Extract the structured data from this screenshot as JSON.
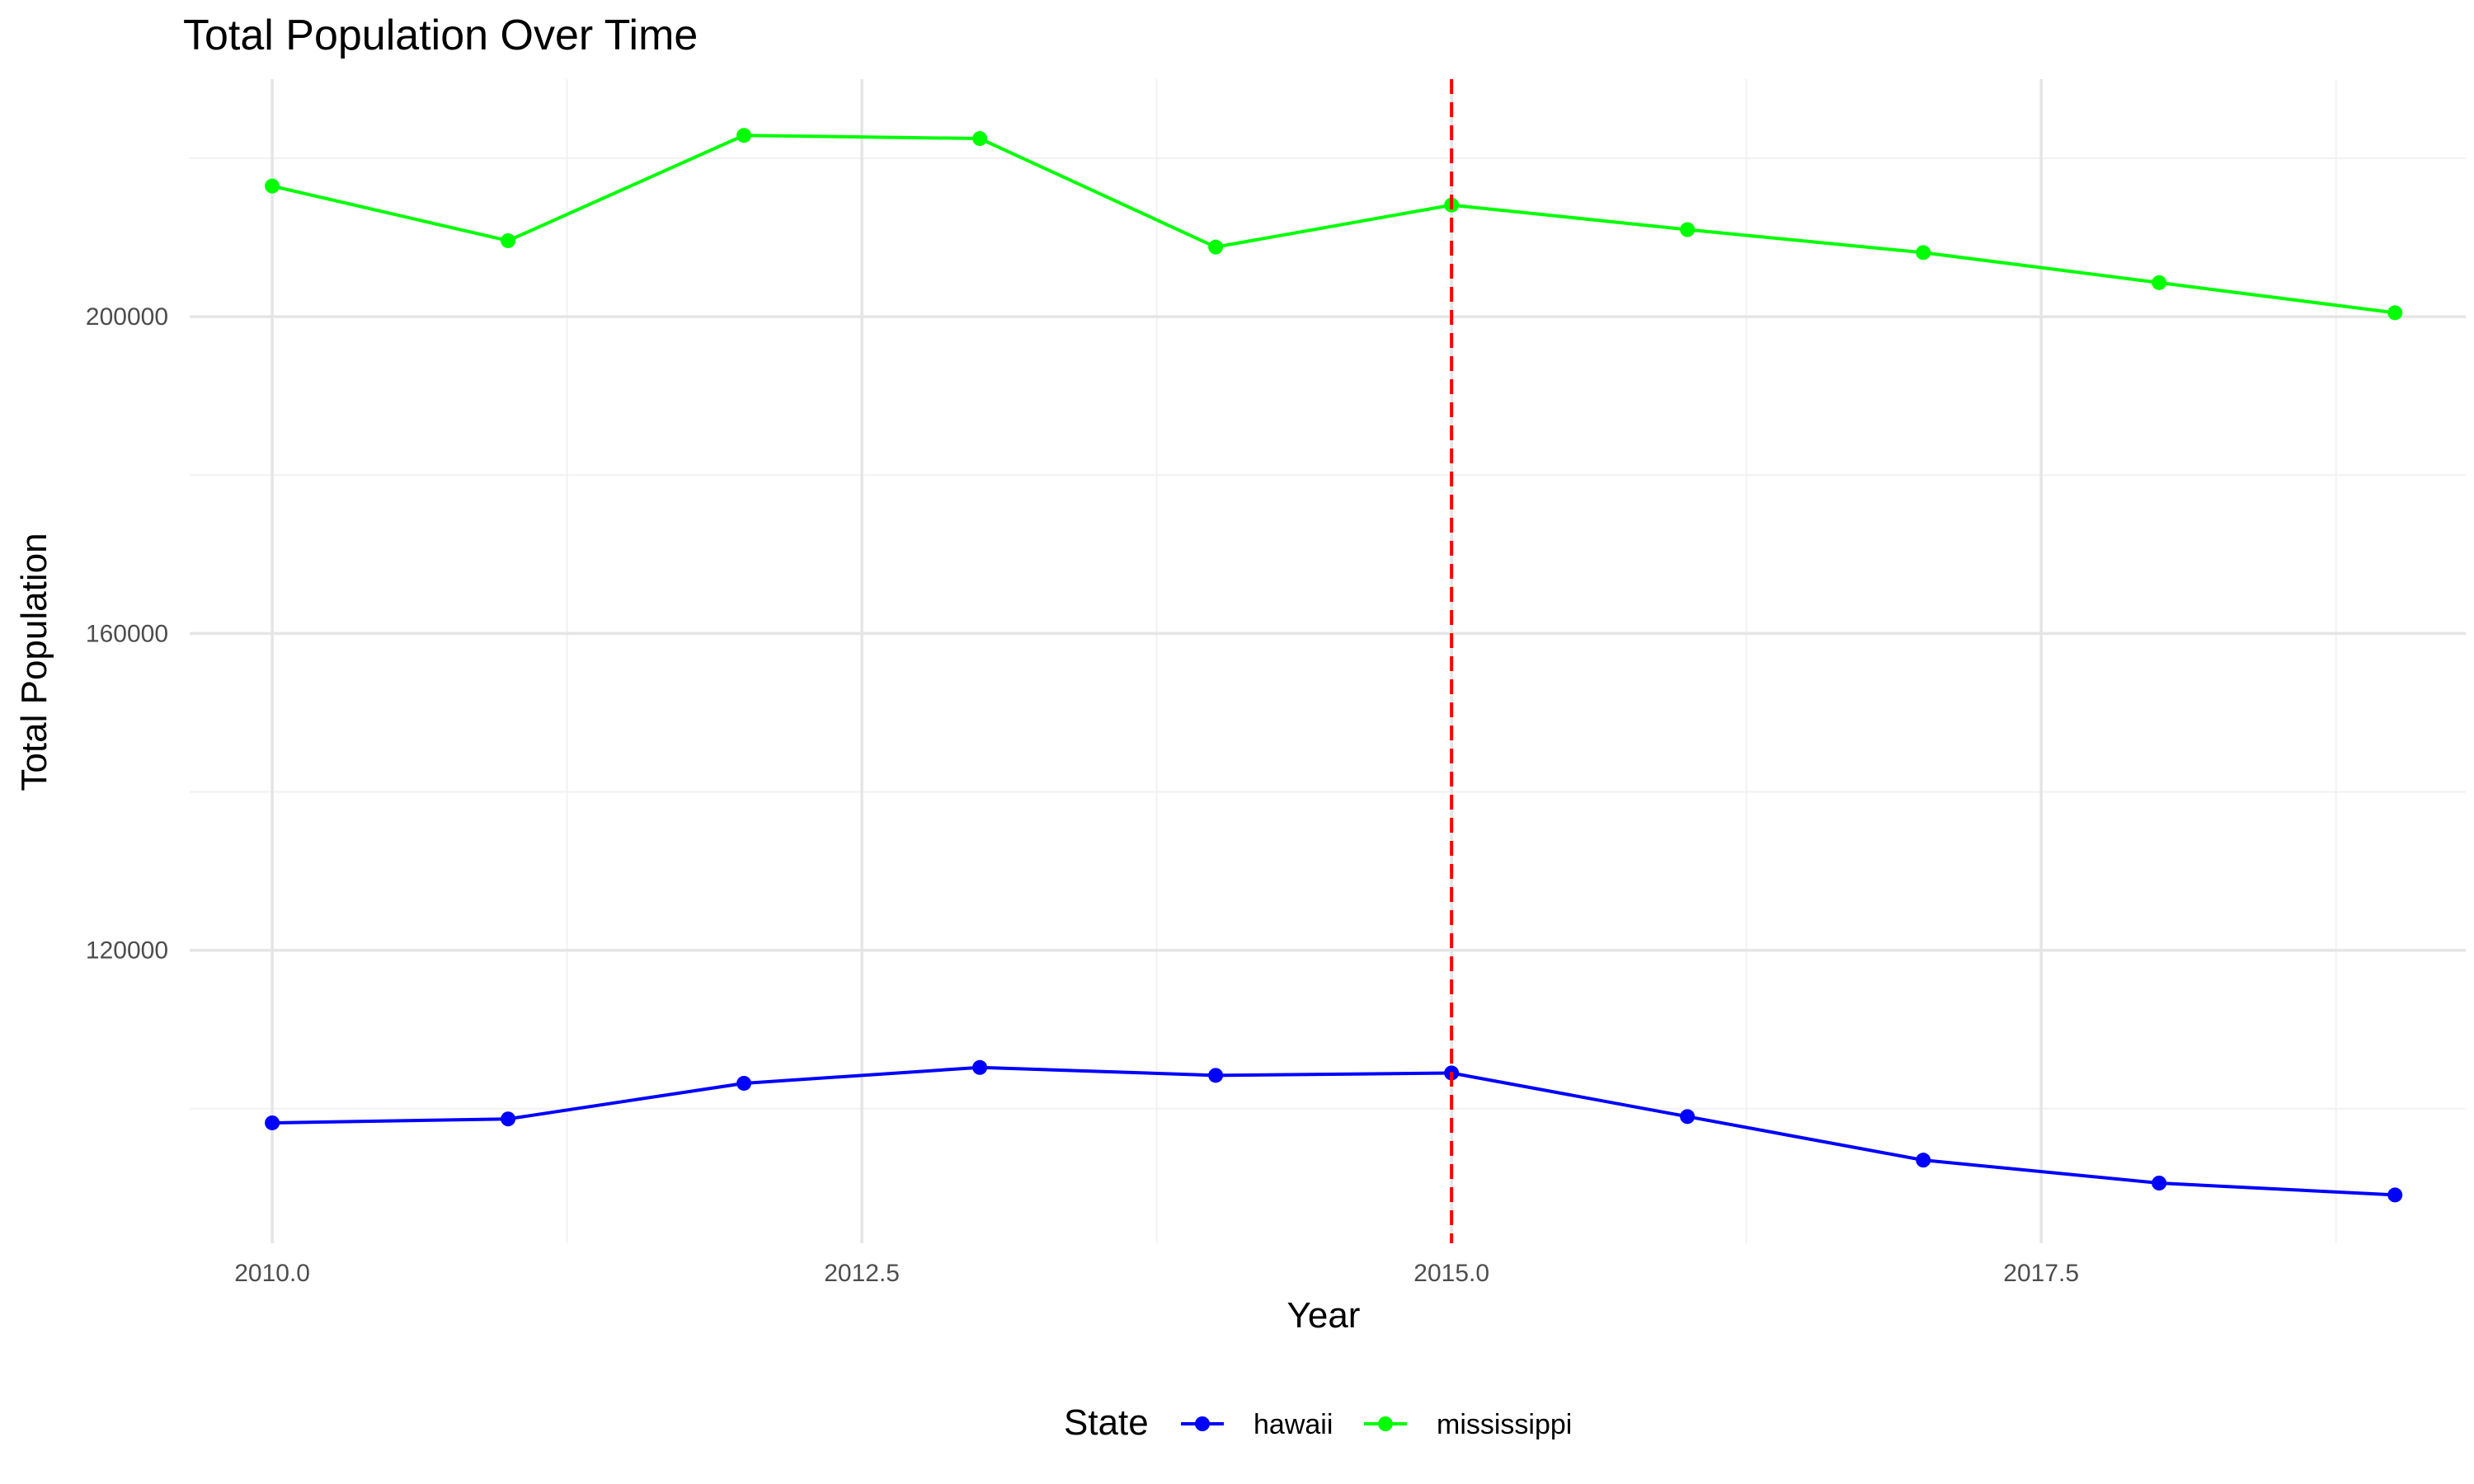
{
  "chart_data": {
    "type": "line",
    "title": "Total Population Over Time",
    "xlabel": "Year",
    "ylabel": "Total Population",
    "xlim": [
      2009.65,
      2019.3
    ],
    "ylim": [
      83000,
      230000
    ],
    "x_ticks": [
      2010.0,
      2012.5,
      2015.0,
      2017.5
    ],
    "x_tick_labels": [
      "2010.0",
      "2012.5",
      "2015.0",
      "2017.5"
    ],
    "x_minor_ticks": [
      2011.25,
      2013.75,
      2016.25,
      2018.75
    ],
    "y_ticks": [
      120000,
      160000,
      200000
    ],
    "y_tick_labels": [
      "120000",
      "160000",
      "200000"
    ],
    "y_minor_ticks": [
      100000,
      140000,
      180000,
      220000
    ],
    "grid": true,
    "legend": {
      "title": "State",
      "position": "bottom"
    },
    "x": [
      2010,
      2011,
      2012,
      2013,
      2014,
      2015,
      2016,
      2017,
      2018,
      2019
    ],
    "series": [
      {
        "name": "hawaii",
        "color": "#0000ff",
        "values": [
          98200,
          98700,
          103200,
          105200,
          104200,
          104500,
          99000,
          93500,
          90600,
          89100
        ]
      },
      {
        "name": "mississippi",
        "color": "#00ff00",
        "values": [
          216500,
          209600,
          222900,
          222500,
          208800,
          214100,
          211000,
          208100,
          204300,
          200500
        ]
      }
    ],
    "annotations": [
      {
        "type": "vline",
        "x": 2015,
        "color": "#ff0000",
        "style": "dashed"
      }
    ]
  }
}
